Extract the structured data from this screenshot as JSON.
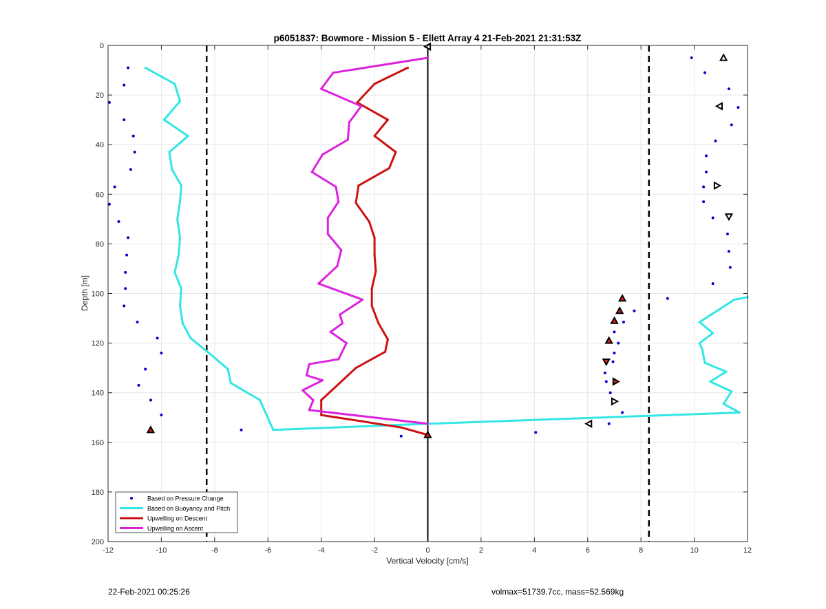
{
  "chart_data": {
    "type": "line",
    "title": "p6051837: Bowmore - Mission 5 - Ellett Array 4 21-Feb-2021 21:31:53Z",
    "xlabel": "Vertical Velocity [cm/s]",
    "ylabel": "Depth [m]",
    "xlim": [
      -12,
      12
    ],
    "ylim": [
      0,
      200
    ],
    "y_reversed": true,
    "grid": true,
    "legend_position": "bottom-left",
    "xticks": [
      -12,
      -10,
      -8,
      -6,
      -4,
      -2,
      0,
      2,
      4,
      6,
      8,
      10,
      12
    ],
    "yticks": [
      0,
      20,
      40,
      60,
      80,
      100,
      120,
      140,
      160,
      180,
      200
    ],
    "reference_lines": {
      "zero_line": {
        "x": 0,
        "color": "#000000"
      },
      "dashed_limits": {
        "x": [
          -8.3,
          8.3
        ],
        "color": "#000000"
      }
    },
    "series": [
      {
        "name": "Based on Pressure Change",
        "style": "dots",
        "color": "#0000cc",
        "points": [
          [
            -11.25,
            9
          ],
          [
            -11.4,
            16
          ],
          [
            -11.95,
            23
          ],
          [
            -11.4,
            30
          ],
          [
            -11.05,
            36.5
          ],
          [
            -11.0,
            43
          ],
          [
            -11.15,
            50
          ],
          [
            -11.75,
            57
          ],
          [
            -11.95,
            64
          ],
          [
            -11.6,
            71
          ],
          [
            -11.25,
            77.5
          ],
          [
            -11.3,
            84.5
          ],
          [
            -11.35,
            91.5
          ],
          [
            -11.35,
            98
          ],
          [
            -11.4,
            105
          ],
          [
            -10.9,
            111.5
          ],
          [
            -10.15,
            118
          ],
          [
            -10.0,
            124
          ],
          [
            -10.6,
            130.5
          ],
          [
            -10.85,
            137
          ],
          [
            -10.4,
            143
          ],
          [
            -10.0,
            149
          ],
          [
            -10.4,
            155
          ],
          [
            -7.0,
            155
          ],
          [
            -1.0,
            157.5
          ],
          [
            4.05,
            156
          ],
          [
            6.8,
            152.5
          ],
          [
            7.3,
            148
          ],
          [
            6.85,
            140
          ],
          [
            6.7,
            135.5
          ],
          [
            6.65,
            132
          ],
          [
            6.95,
            127.5
          ],
          [
            7.0,
            124
          ],
          [
            7.15,
            120
          ],
          [
            7.0,
            115.5
          ],
          [
            7.35,
            111.5
          ],
          [
            7.75,
            107
          ],
          [
            9.0,
            102
          ],
          [
            10.7,
            96
          ],
          [
            11.35,
            89.5
          ],
          [
            11.3,
            83
          ],
          [
            11.25,
            76
          ],
          [
            10.7,
            69.5
          ],
          [
            10.35,
            63
          ],
          [
            10.35,
            57
          ],
          [
            10.45,
            51
          ],
          [
            10.45,
            44.5
          ],
          [
            10.8,
            38.5
          ],
          [
            11.4,
            32
          ],
          [
            11.65,
            25
          ],
          [
            11.3,
            17.5
          ],
          [
            10.4,
            11
          ],
          [
            9.9,
            5
          ]
        ]
      },
      {
        "name": "Based on Buoyancy and Pitch",
        "style": "line",
        "color": "#33e6e6",
        "points": [
          [
            -10.6,
            9
          ],
          [
            -9.5,
            15.5
          ],
          [
            -9.3,
            22.5
          ],
          [
            -9.9,
            30
          ],
          [
            -9.0,
            36.5
          ],
          [
            -9.7,
            43
          ],
          [
            -9.6,
            50
          ],
          [
            -9.25,
            56.5
          ],
          [
            -9.3,
            63
          ],
          [
            -9.4,
            70
          ],
          [
            -9.3,
            77.5
          ],
          [
            -9.35,
            84.5
          ],
          [
            -9.5,
            91.5
          ],
          [
            -9.25,
            98
          ],
          [
            -9.3,
            105
          ],
          [
            -9.2,
            112
          ],
          [
            -8.9,
            118
          ],
          [
            -8.1,
            125
          ],
          [
            -7.5,
            130.5
          ],
          [
            -7.4,
            136
          ],
          [
            -6.3,
            143
          ],
          [
            -5.8,
            155
          ],
          [
            0.0,
            152.5
          ],
          [
            11.7,
            148
          ],
          [
            11.1,
            144.5
          ],
          [
            11.4,
            139.5
          ],
          [
            10.6,
            135.5
          ],
          [
            11.2,
            131.5
          ],
          [
            10.4,
            128
          ],
          [
            10.3,
            122.5
          ],
          [
            10.2,
            120
          ],
          [
            10.7,
            116
          ],
          [
            10.2,
            111.5
          ],
          [
            11.0,
            106
          ],
          [
            11.5,
            102.5
          ],
          [
            12.0,
            101.5
          ]
        ]
      },
      {
        "name": "Upwelling on Descent",
        "style": "line",
        "color": "#cc1111",
        "points": [
          [
            -0.75,
            9
          ],
          [
            -2.0,
            15.5
          ],
          [
            -2.65,
            23
          ],
          [
            -1.5,
            30
          ],
          [
            -2.0,
            36.5
          ],
          [
            -1.2,
            43
          ],
          [
            -1.45,
            49.5
          ],
          [
            -2.6,
            56.5
          ],
          [
            -2.7,
            63.5
          ],
          [
            -2.2,
            71
          ],
          [
            -2.0,
            77.5
          ],
          [
            -2.0,
            84.5
          ],
          [
            -1.95,
            91
          ],
          [
            -2.1,
            98
          ],
          [
            -2.1,
            105
          ],
          [
            -1.85,
            112
          ],
          [
            -1.5,
            118.5
          ],
          [
            -1.6,
            123.5
          ],
          [
            -2.7,
            130
          ],
          [
            -4.0,
            143
          ],
          [
            -4.0,
            149
          ],
          [
            -1.0,
            154
          ],
          [
            0.0,
            157
          ]
        ]
      },
      {
        "name": "Upwelling on Ascent",
        "style": "line",
        "color": "#dd22dd",
        "points": [
          [
            0.0,
            5
          ],
          [
            -3.55,
            11
          ],
          [
            -4.0,
            17.5
          ],
          [
            -2.5,
            24.5
          ],
          [
            -2.95,
            31
          ],
          [
            -3.0,
            38
          ],
          [
            -3.95,
            44
          ],
          [
            -4.35,
            51
          ],
          [
            -3.45,
            57
          ],
          [
            -3.35,
            63
          ],
          [
            -3.75,
            69.5
          ],
          [
            -3.75,
            76
          ],
          [
            -3.25,
            82.5
          ],
          [
            -3.4,
            89
          ],
          [
            -4.1,
            96
          ],
          [
            -2.45,
            102.5
          ],
          [
            -3.3,
            108.5
          ],
          [
            -3.2,
            112
          ],
          [
            -3.65,
            115.5
          ],
          [
            -3.05,
            120
          ],
          [
            -3.35,
            126.5
          ],
          [
            -4.45,
            128.5
          ],
          [
            -4.55,
            133
          ],
          [
            -3.95,
            135
          ],
          [
            -4.7,
            139
          ],
          [
            -4.3,
            143
          ],
          [
            -4.45,
            147
          ],
          [
            0.0,
            152.5
          ]
        ]
      }
    ],
    "markers": [
      {
        "kind": "left",
        "x": 0.0,
        "y": 0.5,
        "filled": false
      },
      {
        "kind": "up",
        "x": 11.1,
        "y": 5,
        "filled": false
      },
      {
        "kind": "left",
        "x": 10.95,
        "y": 24.5,
        "filled": false
      },
      {
        "kind": "right",
        "x": 10.85,
        "y": 56.5,
        "filled": false
      },
      {
        "kind": "down",
        "x": 11.3,
        "y": 69,
        "filled": false
      },
      {
        "kind": "up",
        "x": 7.3,
        "y": 102,
        "filled": true
      },
      {
        "kind": "up",
        "x": 7.2,
        "y": 107,
        "filled": true
      },
      {
        "kind": "up",
        "x": 7.0,
        "y": 111,
        "filled": true
      },
      {
        "kind": "up",
        "x": 6.8,
        "y": 119,
        "filled": true
      },
      {
        "kind": "down",
        "x": 6.7,
        "y": 127.5,
        "filled": true
      },
      {
        "kind": "right",
        "x": 7.05,
        "y": 135.5,
        "filled": true
      },
      {
        "kind": "right",
        "x": 7.0,
        "y": 143.5,
        "filled": false
      },
      {
        "kind": "left",
        "x": 6.05,
        "y": 152.5,
        "filled": false
      },
      {
        "kind": "up",
        "x": 0.0,
        "y": 157,
        "filled": true
      },
      {
        "kind": "up",
        "x": -10.4,
        "y": 155,
        "filled": true
      }
    ]
  },
  "footer": {
    "left": "22-Feb-2021 00:25:26",
    "right": "volmax=51739.7cc, mass=52.569kg"
  }
}
